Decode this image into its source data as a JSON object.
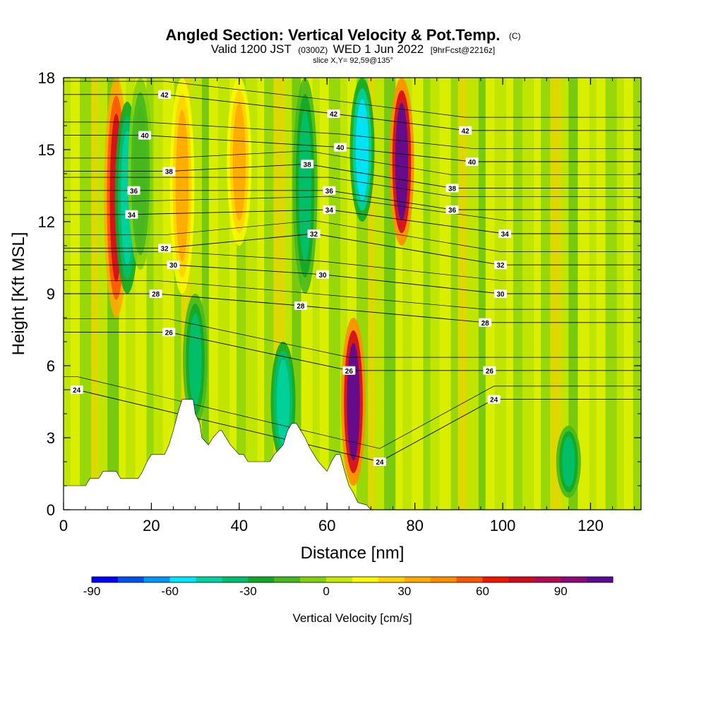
{
  "title": {
    "main": "Angled Section: Vertical Velocity & Pot.Temp.",
    "main_unit": "(C)",
    "valid_prefix": "Valid 1200 JST",
    "valid_utc": "(0300Z)",
    "valid_date": "WED 1 Jun 2022",
    "forecast": "[9hrFcst@2216z]",
    "slice": "slice X,Y= 92,59@135°"
  },
  "chart_data": {
    "type": "heatmap",
    "xlabel": "Distance [nm]",
    "ylabel": "Height [Kft MSL]",
    "xlim": [
      0,
      131.5
    ],
    "ylim": [
      0,
      18
    ],
    "xticks": [
      0,
      20,
      40,
      60,
      80,
      100,
      120
    ],
    "xtick_labels": [
      "0",
      "20",
      "40",
      "60",
      "80",
      "100",
      "120"
    ],
    "yticks": [
      0,
      3,
      6,
      9,
      12,
      15,
      18
    ],
    "ytick_labels": [
      "0",
      "3",
      "6",
      "9",
      "12",
      "15",
      "18"
    ],
    "colorbar": {
      "label": "Vertical Velocity [cm/s]",
      "min": -90,
      "step": 10,
      "ticks": [
        -90,
        -60,
        -30,
        0,
        30,
        60,
        90
      ],
      "tick_labels": [
        "-90",
        "-60",
        "-30",
        "0",
        "30",
        "60",
        "90"
      ],
      "colors": [
        "#0000ff",
        "#0050f0",
        "#0096f5",
        "#00e6ff",
        "#00d2a0",
        "#00c070",
        "#10a828",
        "#46b81e",
        "#82d010",
        "#c8ea00",
        "#fafa00",
        "#ffd200",
        "#ffaa00",
        "#ff8c00",
        "#ff5500",
        "#f51400",
        "#d20a1e",
        "#b40a50",
        "#8c0a78",
        "#5a0a96"
      ]
    },
    "vertical_velocity_bands": [
      {
        "x": 12,
        "ymin": 8,
        "ymax": 18,
        "value": 75
      },
      {
        "x": 14.5,
        "ymin": 9,
        "ymax": 17,
        "value": -45
      },
      {
        "x": 17.5,
        "ymin": 10,
        "ymax": 18,
        "value": -20
      },
      {
        "x": 27,
        "ymin": 9,
        "ymax": 18,
        "value": 35
      },
      {
        "x": 30,
        "ymin": 3.5,
        "ymax": 9,
        "value": -40
      },
      {
        "x": 40,
        "ymin": 11,
        "ymax": 18,
        "value": 35
      },
      {
        "x": 50,
        "ymin": 2,
        "ymax": 7,
        "value": -45
      },
      {
        "x": 55,
        "ymin": 9,
        "ymax": 18,
        "value": -35
      },
      {
        "x": 66,
        "ymin": 1,
        "ymax": 8,
        "value": 100
      },
      {
        "x": 68,
        "ymin": 12,
        "ymax": 18,
        "value": -60
      },
      {
        "x": 77,
        "ymin": 11,
        "ymax": 18,
        "value": 100
      },
      {
        "x": 115,
        "ymin": 0.5,
        "ymax": 3.5,
        "value": -40
      }
    ],
    "terrain": {
      "x": [
        0,
        5,
        6,
        8,
        9,
        12,
        13,
        17,
        18,
        19,
        20,
        23,
        24,
        25,
        26,
        27,
        27.5,
        29.5,
        30,
        31,
        31.5,
        33,
        34,
        35.5,
        36,
        37,
        38,
        40,
        41,
        42,
        47,
        48,
        50,
        51,
        52,
        53,
        54,
        55,
        56,
        57,
        58,
        60,
        61,
        62,
        63,
        64,
        65,
        66,
        67,
        69,
        70,
        131.5
      ],
      "y": [
        1,
        1,
        1.3,
        1.3,
        1.6,
        1.6,
        1.3,
        1.3,
        1.6,
        2,
        2.3,
        2.3,
        2.7,
        3.3,
        4,
        4.6,
        4.6,
        4.6,
        4,
        3.6,
        3,
        2.7,
        3,
        3.3,
        3.3,
        3,
        2.7,
        2.3,
        2.3,
        2,
        2,
        2.3,
        2.7,
        3.3,
        3.6,
        3.6,
        3.3,
        3,
        2.6,
        2.3,
        2,
        1.6,
        2,
        2.3,
        2.3,
        1.6,
        1,
        0.7,
        0.3,
        0.2,
        0,
        0
      ]
    },
    "pot_temp_contours": [
      24,
      26,
      28,
      30,
      32,
      34,
      36,
      38,
      40,
      42
    ],
    "pot_temp_labels": [
      {
        "text": "24",
        "x": 3,
        "y": 5
      },
      {
        "text": "26",
        "x": 24,
        "y": 7.4
      },
      {
        "text": "28",
        "x": 21,
        "y": 9
      },
      {
        "text": "30",
        "x": 25,
        "y": 10.2
      },
      {
        "text": "32",
        "x": 23,
        "y": 10.9
      },
      {
        "text": "34",
        "x": 15.5,
        "y": 12.3
      },
      {
        "text": "36",
        "x": 16,
        "y": 13.3
      },
      {
        "text": "38",
        "x": 24,
        "y": 14.1
      },
      {
        "text": "40",
        "x": 18.5,
        "y": 15.6
      },
      {
        "text": "42",
        "x": 23,
        "y": 17.3
      },
      {
        "text": "28",
        "x": 54,
        "y": 8.5
      },
      {
        "text": "30",
        "x": 59,
        "y": 9.8
      },
      {
        "text": "32",
        "x": 57,
        "y": 11.5
      },
      {
        "text": "34",
        "x": 60.5,
        "y": 12.5
      },
      {
        "text": "36",
        "x": 60.5,
        "y": 13.3
      },
      {
        "text": "38",
        "x": 55.5,
        "y": 14.4
      },
      {
        "text": "40",
        "x": 63,
        "y": 15.1
      },
      {
        "text": "42",
        "x": 61.5,
        "y": 16.5
      },
      {
        "text": "26",
        "x": 65,
        "y": 5.8
      },
      {
        "text": "24",
        "x": 72,
        "y": 2
      },
      {
        "text": "24",
        "x": 98,
        "y": 4.6
      },
      {
        "text": "26",
        "x": 97,
        "y": 5.8
      },
      {
        "text": "28",
        "x": 96,
        "y": 7.8
      },
      {
        "text": "30",
        "x": 99.5,
        "y": 9
      },
      {
        "text": "32",
        "x": 99.5,
        "y": 10.2
      },
      {
        "text": "34",
        "x": 100.5,
        "y": 11.5
      },
      {
        "text": "36",
        "x": 88.5,
        "y": 12.5
      },
      {
        "text": "38",
        "x": 88.5,
        "y": 13.4
      },
      {
        "text": "40",
        "x": 93,
        "y": 14.5
      },
      {
        "text": "42",
        "x": 91.5,
        "y": 15.8
      }
    ]
  }
}
